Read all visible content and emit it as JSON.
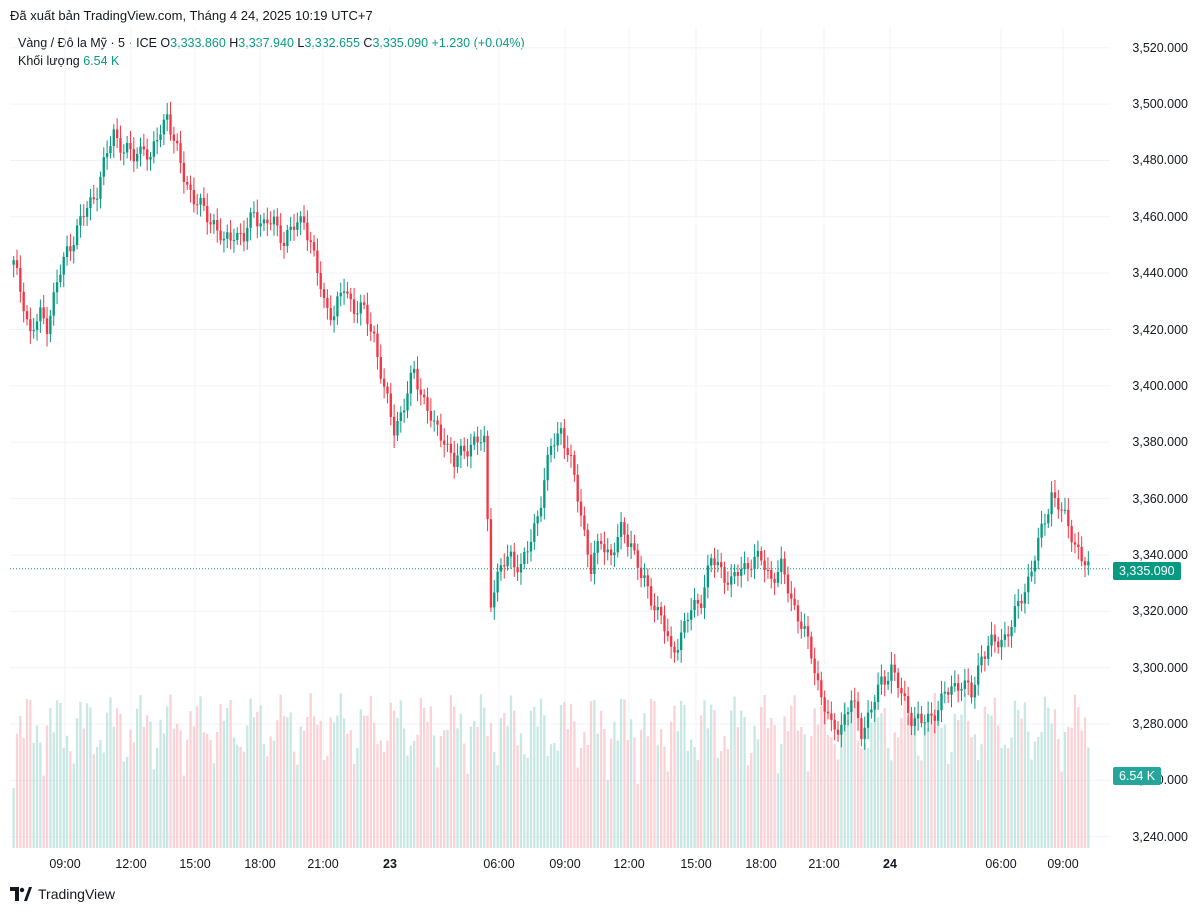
{
  "published": "Đã xuất bản TradingView.com, Tháng 4 24, 2025 10:19 UTC+7",
  "legend": {
    "symbol": "Vàng / Đô la Mỹ · 5 · ICE",
    "o_label": "O",
    "o_value": "3,333.860",
    "h_label": "H",
    "h_value": "3,337.940",
    "l_label": "L",
    "l_value": "3,332.655",
    "c_label": "C",
    "c_value": "3,335.090",
    "change": "+1.230 (+0.04%)"
  },
  "volume": {
    "label": "Khối lượng",
    "value": "6.54 K"
  },
  "price_tag": "3,335.090",
  "volume_tag": "6.54 K",
  "brand": "TradingView",
  "colors": {
    "up": "#089981",
    "down": "#f23645",
    "grid": "#f0f3fa",
    "vol_up": "#a7d8d1",
    "vol_down": "#f7b6bc"
  },
  "chart_data": {
    "type": "candlestick",
    "y_ticks": [
      "3,520.000",
      "3,500.000",
      "3,480.000",
      "3,460.000",
      "3,440.000",
      "3,420.000",
      "3,400.000",
      "3,380.000",
      "3,360.000",
      "3,340.000",
      "3,320.000",
      "3,300.000",
      "3,280.000",
      "3,260.000",
      "3,240.000"
    ],
    "y_tick_values": [
      3520,
      3500,
      3480,
      3460,
      3440,
      3420,
      3400,
      3380,
      3360,
      3340,
      3320,
      3300,
      3280,
      3260,
      3240
    ],
    "ylim": [
      3236,
      3527
    ],
    "x_ticks": [
      "09:00",
      "12:00",
      "15:00",
      "18:00",
      "21:00",
      "23",
      "06:00",
      "09:00",
      "12:00",
      "15:00",
      "18:00",
      "21:00",
      "24",
      "06:00",
      "09:00"
    ],
    "x_tick_bold": [
      false,
      false,
      false,
      false,
      false,
      true,
      false,
      false,
      false,
      false,
      false,
      false,
      true,
      false,
      false
    ],
    "current_price": 3335.09,
    "price_path": [
      [
        0,
        3443
      ],
      [
        3,
        3430
      ],
      [
        5,
        3418
      ],
      [
        8,
        3425
      ],
      [
        10,
        3422
      ],
      [
        13,
        3436
      ],
      [
        16,
        3448
      ],
      [
        20,
        3458
      ],
      [
        25,
        3470
      ],
      [
        30,
        3490
      ],
      [
        33,
        3484
      ],
      [
        36,
        3481
      ],
      [
        39,
        3486
      ],
      [
        41,
        3479
      ],
      [
        43,
        3488
      ],
      [
        46,
        3497
      ],
      [
        48,
        3486
      ],
      [
        51,
        3475
      ],
      [
        54,
        3466
      ],
      [
        57,
        3462
      ],
      [
        60,
        3458
      ],
      [
        63,
        3450
      ],
      [
        66,
        3455
      ],
      [
        69,
        3452
      ],
      [
        72,
        3462
      ],
      [
        75,
        3457
      ],
      [
        78,
        3458
      ],
      [
        81,
        3452
      ],
      [
        84,
        3456
      ],
      [
        87,
        3460
      ],
      [
        90,
        3445
      ],
      [
        93,
        3430
      ],
      [
        96,
        3425
      ],
      [
        99,
        3435
      ],
      [
        102,
        3428
      ],
      [
        105,
        3426
      ],
      [
        108,
        3418
      ],
      [
        111,
        3398
      ],
      [
        114,
        3385
      ],
      [
        117,
        3393
      ],
      [
        120,
        3405
      ],
      [
        123,
        3395
      ],
      [
        126,
        3385
      ],
      [
        129,
        3382
      ],
      [
        132,
        3372
      ],
      [
        135,
        3378
      ],
      [
        138,
        3380
      ],
      [
        141,
        3380
      ],
      [
        143,
        3325
      ],
      [
        146,
        3335
      ],
      [
        149,
        3340
      ],
      [
        152,
        3335
      ],
      [
        155,
        3345
      ],
      [
        158,
        3360
      ],
      [
        161,
        3378
      ],
      [
        164,
        3385
      ],
      [
        167,
        3372
      ],
      [
        170,
        3355
      ],
      [
        173,
        3335
      ],
      [
        176,
        3345
      ],
      [
        179,
        3340
      ],
      [
        182,
        3348
      ],
      [
        185,
        3345
      ],
      [
        188,
        3332
      ],
      [
        191,
        3325
      ],
      [
        194,
        3318
      ],
      [
        197,
        3305
      ],
      [
        200,
        3312
      ],
      [
        203,
        3320
      ],
      [
        206,
        3325
      ],
      [
        209,
        3338
      ],
      [
        212,
        3335
      ],
      [
        215,
        3330
      ],
      [
        218,
        3335
      ],
      [
        221,
        3338
      ],
      [
        224,
        3338
      ],
      [
        227,
        3332
      ],
      [
        230,
        3335
      ],
      [
        233,
        3325
      ],
      [
        236,
        3315
      ],
      [
        239,
        3305
      ],
      [
        242,
        3290
      ],
      [
        245,
        3278
      ],
      [
        248,
        3280
      ],
      [
        251,
        3288
      ],
      [
        254,
        3278
      ],
      [
        257,
        3285
      ],
      [
        260,
        3295
      ],
      [
        263,
        3300
      ],
      [
        266,
        3290
      ],
      [
        269,
        3283
      ],
      [
        272,
        3280
      ],
      [
        275,
        3283
      ],
      [
        278,
        3288
      ],
      [
        281,
        3293
      ],
      [
        284,
        3295
      ],
      [
        287,
        3290
      ],
      [
        290,
        3305
      ],
      [
        293,
        3308
      ],
      [
        296,
        3310
      ],
      [
        299,
        3315
      ],
      [
        302,
        3325
      ],
      [
        305,
        3335
      ],
      [
        308,
        3348
      ],
      [
        311,
        3362
      ],
      [
        314,
        3355
      ],
      [
        317,
        3348
      ],
      [
        320,
        3338
      ],
      [
        322,
        3335
      ]
    ]
  }
}
